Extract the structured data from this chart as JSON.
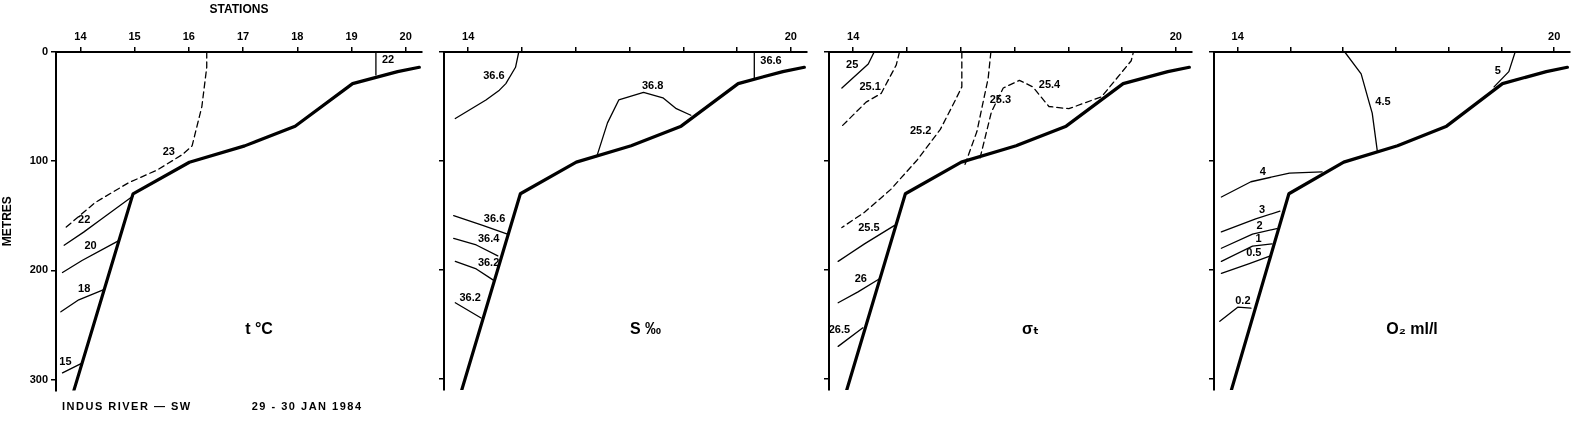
{
  "chart_data": [
    {
      "type": "line",
      "title": "t °C",
      "xlabel": "STATIONS",
      "ylabel": "METRES",
      "xlim": [
        13.55,
        20.3
      ],
      "xticks": [
        14,
        15,
        16,
        17,
        18,
        19,
        20
      ],
      "ylim": [
        310,
        0
      ],
      "yticks": [
        0,
        100,
        200,
        300
      ],
      "grid": false,
      "legend": false,
      "marker": "none",
      "line_style": "solid",
      "series": [
        {
          "color": "#000000",
          "x": [
            20.25,
            19.85,
            19.02,
            17.96,
            17.03,
            16.01,
            14.97,
            13.88
          ],
          "values": [
            14,
            18,
            29,
            68,
            86,
            101,
            130,
            310
          ]
        },
        {
          "name": "23",
          "color": "#000000",
          "line_style": "dashed",
          "x": [
            16.33,
            16.33,
            16.24,
            16.06,
            15.88,
            15.42,
            14.88,
            14.27,
            13.7
          ],
          "values": [
            0,
            14,
            50,
            86,
            94,
            108,
            120,
            138,
            162
          ]
        },
        {
          "name": "22",
          "color": "#000000",
          "x": [
            13.7,
            14.06,
            14.39,
            14.97
          ],
          "values": [
            177,
            165,
            153,
            132
          ]
        },
        {
          "name": "20",
          "color": "#000000",
          "x": [
            13.67,
            14.03,
            14.7
          ],
          "values": [
            202,
            191,
            173
          ]
        },
        {
          "name": "18",
          "color": "#000000",
          "x": [
            13.64,
            13.97,
            14.42
          ],
          "values": [
            238,
            227,
            218
          ]
        },
        {
          "name": "15",
          "color": "#000000",
          "x": [
            13.67,
            14.03
          ],
          "values": [
            294,
            285
          ]
        },
        {
          "name": "22",
          "color": "#000000",
          "x": [
            19.45,
            19.45
          ],
          "values": [
            0,
            21
          ]
        }
      ],
      "annotations": [
        "INDUS RIVER — SW",
        "29 - 30 JAN 1984"
      ]
    },
    {
      "type": "line",
      "title": "S ‰",
      "xlim": [
        13.55,
        20.3
      ],
      "xticks": [
        14,
        {
          "value": 15,
          "label": null
        },
        {
          "value": 16,
          "label": null
        },
        {
          "value": 17,
          "label": null
        },
        {
          "value": 18,
          "label": null
        },
        {
          "value": 19,
          "label": null
        },
        20
      ],
      "ylim": [
        310,
        0
      ],
      "yticks": [
        0,
        100,
        200,
        300
      ],
      "tick_labels": "x",
      "grid": false,
      "legend": false,
      "marker": "none",
      "line_style": "solid",
      "series": [
        {
          "color": "#000000",
          "x": [
            20.25,
            19.85,
            19.02,
            17.96,
            17.03,
            16.01,
            14.97,
            13.88
          ],
          "values": [
            14,
            18,
            29,
            68,
            86,
            101,
            130,
            310
          ]
        },
        {
          "name": "36.6",
          "color": "#000000",
          "x": [
            14.94,
            14.88,
            14.7,
            14.58,
            14.33,
            13.76
          ],
          "values": [
            0,
            14,
            29,
            35,
            44,
            61
          ]
        },
        {
          "name": "36.6",
          "color": "#000000",
          "x": [
            19.32,
            19.32
          ],
          "values": [
            0,
            24
          ]
        },
        {
          "name": "36.8",
          "color": "#000000",
          "x": [
            16.39,
            16.59,
            16.8,
            17.26,
            17.62,
            17.87,
            18.14
          ],
          "values": [
            96,
            65,
            44,
            37,
            42,
            52,
            58
          ]
        },
        {
          "name": "36.6",
          "color": "#000000",
          "x": [
            13.73,
            14.27,
            14.73
          ],
          "values": [
            150,
            159,
            167
          ]
        },
        {
          "name": "36.4",
          "color": "#000000",
          "x": [
            13.73,
            14.15,
            14.55
          ],
          "values": [
            171,
            177,
            187
          ]
        },
        {
          "name": "36.2",
          "color": "#000000",
          "x": [
            13.76,
            14.15,
            14.46
          ],
          "values": [
            192,
            199,
            209
          ]
        },
        {
          "name": "36.2",
          "color": "#000000",
          "x": [
            13.76,
            14.24
          ],
          "values": [
            230,
            244
          ]
        }
      ]
    },
    {
      "type": "line",
      "title": "σₜ",
      "xlim": [
        13.55,
        20.3
      ],
      "xticks": [
        14,
        {
          "value": 15,
          "label": null
        },
        {
          "value": 16,
          "label": null
        },
        {
          "value": 17,
          "label": null
        },
        {
          "value": 18,
          "label": null
        },
        {
          "value": 19,
          "label": null
        },
        20
      ],
      "ylim": [
        310,
        0
      ],
      "yticks": [
        0,
        100,
        200,
        300
      ],
      "tick_labels": "x",
      "grid": false,
      "legend": false,
      "marker": "none",
      "line_style": "solid",
      "series": [
        {
          "color": "#000000",
          "x": [
            20.25,
            19.85,
            19.02,
            17.96,
            17.03,
            16.01,
            14.97,
            13.88
          ],
          "values": [
            14,
            18,
            29,
            68,
            86,
            101,
            130,
            310
          ]
        },
        {
          "name": "25",
          "color": "#000000",
          "x": [
            14.39,
            14.28,
            13.79
          ],
          "values": [
            0,
            11,
            33
          ]
        },
        {
          "name": "25.1",
          "color": "#000000",
          "line_style": "dashed",
          "x": [
            14.86,
            14.8,
            14.52,
            14.24,
            13.79
          ],
          "values": [
            0,
            12,
            38,
            46,
            68
          ]
        },
        {
          "name": "25.2",
          "color": "#000000",
          "line_style": "dashed",
          "x": [
            16.02,
            16.02,
            15.87,
            15.62,
            15.19,
            14.7,
            14.21,
            13.79
          ],
          "values": [
            0,
            32,
            47,
            71,
            99,
            126,
            147,
            161
          ]
        },
        {
          "name": "25.3",
          "color": "#000000",
          "line_style": "dashed",
          "x": [
            16.56,
            16.51,
            16.3,
            16.08
          ],
          "values": [
            0,
            24,
            73,
            103
          ]
        },
        {
          "name": "25.4",
          "color": "#000000",
          "line_style": "dashed",
          "x": [
            16.36,
            16.57,
            16.79,
            17.09,
            17.34,
            17.64,
            18.01,
            18.62,
            19.17,
            19.21
          ],
          "values": [
            97,
            55,
            33,
            26,
            32,
            50,
            52,
            41,
            8,
            0
          ]
        },
        {
          "name": "25.5",
          "color": "#000000",
          "x": [
            13.72,
            14.21,
            14.77
          ],
          "values": [
            192,
            176,
            159
          ]
        },
        {
          "name": "26",
          "color": "#000000",
          "x": [
            13.72,
            14.09,
            14.49
          ],
          "values": [
            230,
            220,
            208
          ]
        },
        {
          "name": "26.5",
          "color": "#000000",
          "x": [
            13.72,
            14.18
          ],
          "values": [
            270,
            253
          ]
        }
      ]
    },
    {
      "type": "line",
      "title": "O₂ ml/l",
      "xlim": [
        13.55,
        20.3
      ],
      "xticks": [
        14,
        {
          "value": 15,
          "label": null
        },
        {
          "value": 16,
          "label": null
        },
        {
          "value": 17,
          "label": null
        },
        {
          "value": 18,
          "label": null
        },
        {
          "value": 19,
          "label": null
        },
        20
      ],
      "ylim": [
        310,
        0
      ],
      "yticks": [
        0,
        100,
        200,
        300
      ],
      "tick_labels": "x",
      "grid": false,
      "legend": false,
      "marker": "none",
      "line_style": "solid",
      "series": [
        {
          "color": "#000000",
          "x": [
            20.25,
            19.85,
            19.02,
            17.96,
            17.03,
            16.01,
            14.97,
            13.88
          ],
          "values": [
            14,
            18,
            29,
            68,
            86,
            101,
            130,
            310
          ]
        },
        {
          "name": "4.5",
          "color": "#000000",
          "x": [
            16.03,
            16.34,
            16.49,
            16.55,
            16.65
          ],
          "values": [
            0,
            20,
            46,
            56,
            92
          ]
        },
        {
          "name": "5",
          "color": "#000000",
          "x": [
            19.26,
            19.14,
            18.86
          ],
          "values": [
            0,
            18,
            32
          ]
        },
        {
          "name": "4",
          "color": "#000000",
          "x": [
            13.69,
            14.25,
            14.98,
            15.6
          ],
          "values": [
            133,
            119,
            111,
            110
          ]
        },
        {
          "name": "3",
          "color": "#000000",
          "x": [
            13.69,
            14.34,
            14.8
          ],
          "values": [
            165,
            153,
            146
          ]
        },
        {
          "name": "2",
          "color": "#000000",
          "x": [
            13.69,
            14.28,
            14.74
          ],
          "values": [
            180,
            167,
            162
          ]
        },
        {
          "name": "1",
          "color": "#000000",
          "x": [
            13.69,
            14.28,
            14.65
          ],
          "values": [
            192,
            178,
            176
          ]
        },
        {
          "name": "0.5",
          "color": "#000000",
          "x": [
            13.69,
            14.22,
            14.62
          ],
          "values": [
            203,
            194,
            187
          ]
        },
        {
          "name": "0.2",
          "color": "#000000",
          "x": [
            13.66,
            14.0,
            14.25
          ],
          "values": [
            247,
            234,
            235
          ]
        }
      ]
    }
  ]
}
